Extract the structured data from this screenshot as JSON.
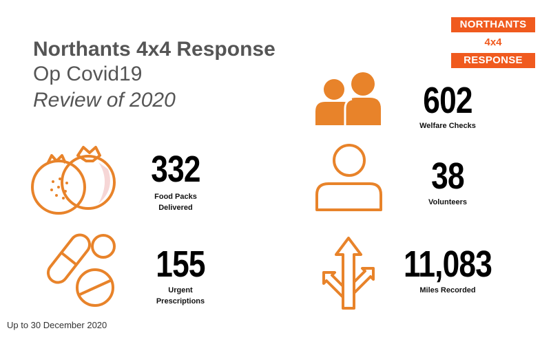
{
  "title": {
    "line1": "Northants 4x4 Response",
    "line2": "Op Covid19",
    "line3": "Review of 2020"
  },
  "logo": {
    "line1": "NORTHANTS",
    "line2": "4x4",
    "line3": "RESPONSE"
  },
  "stats": {
    "welfare": {
      "value": "602",
      "label": "Welfare Checks",
      "icon": "people-icon"
    },
    "food": {
      "value": "332",
      "label_line1": "Food Packs",
      "label_line2": "Delivered",
      "icon": "fruit-icon"
    },
    "volunteers": {
      "value": "38",
      "label": "Volunteers",
      "icon": "person-icon"
    },
    "prescriptions": {
      "value": "155",
      "label_line1": "Urgent",
      "label_line2": "Prescriptions",
      "icon": "pills-icon"
    },
    "miles": {
      "value": "11,083",
      "label": "Miles Recorded",
      "icon": "road-arrows-icon"
    }
  },
  "footer": "Up to 30 December 2020",
  "colors": {
    "accent": "#f05a1e",
    "icon_orange": "#e8832a",
    "title_grey": "#555555"
  }
}
